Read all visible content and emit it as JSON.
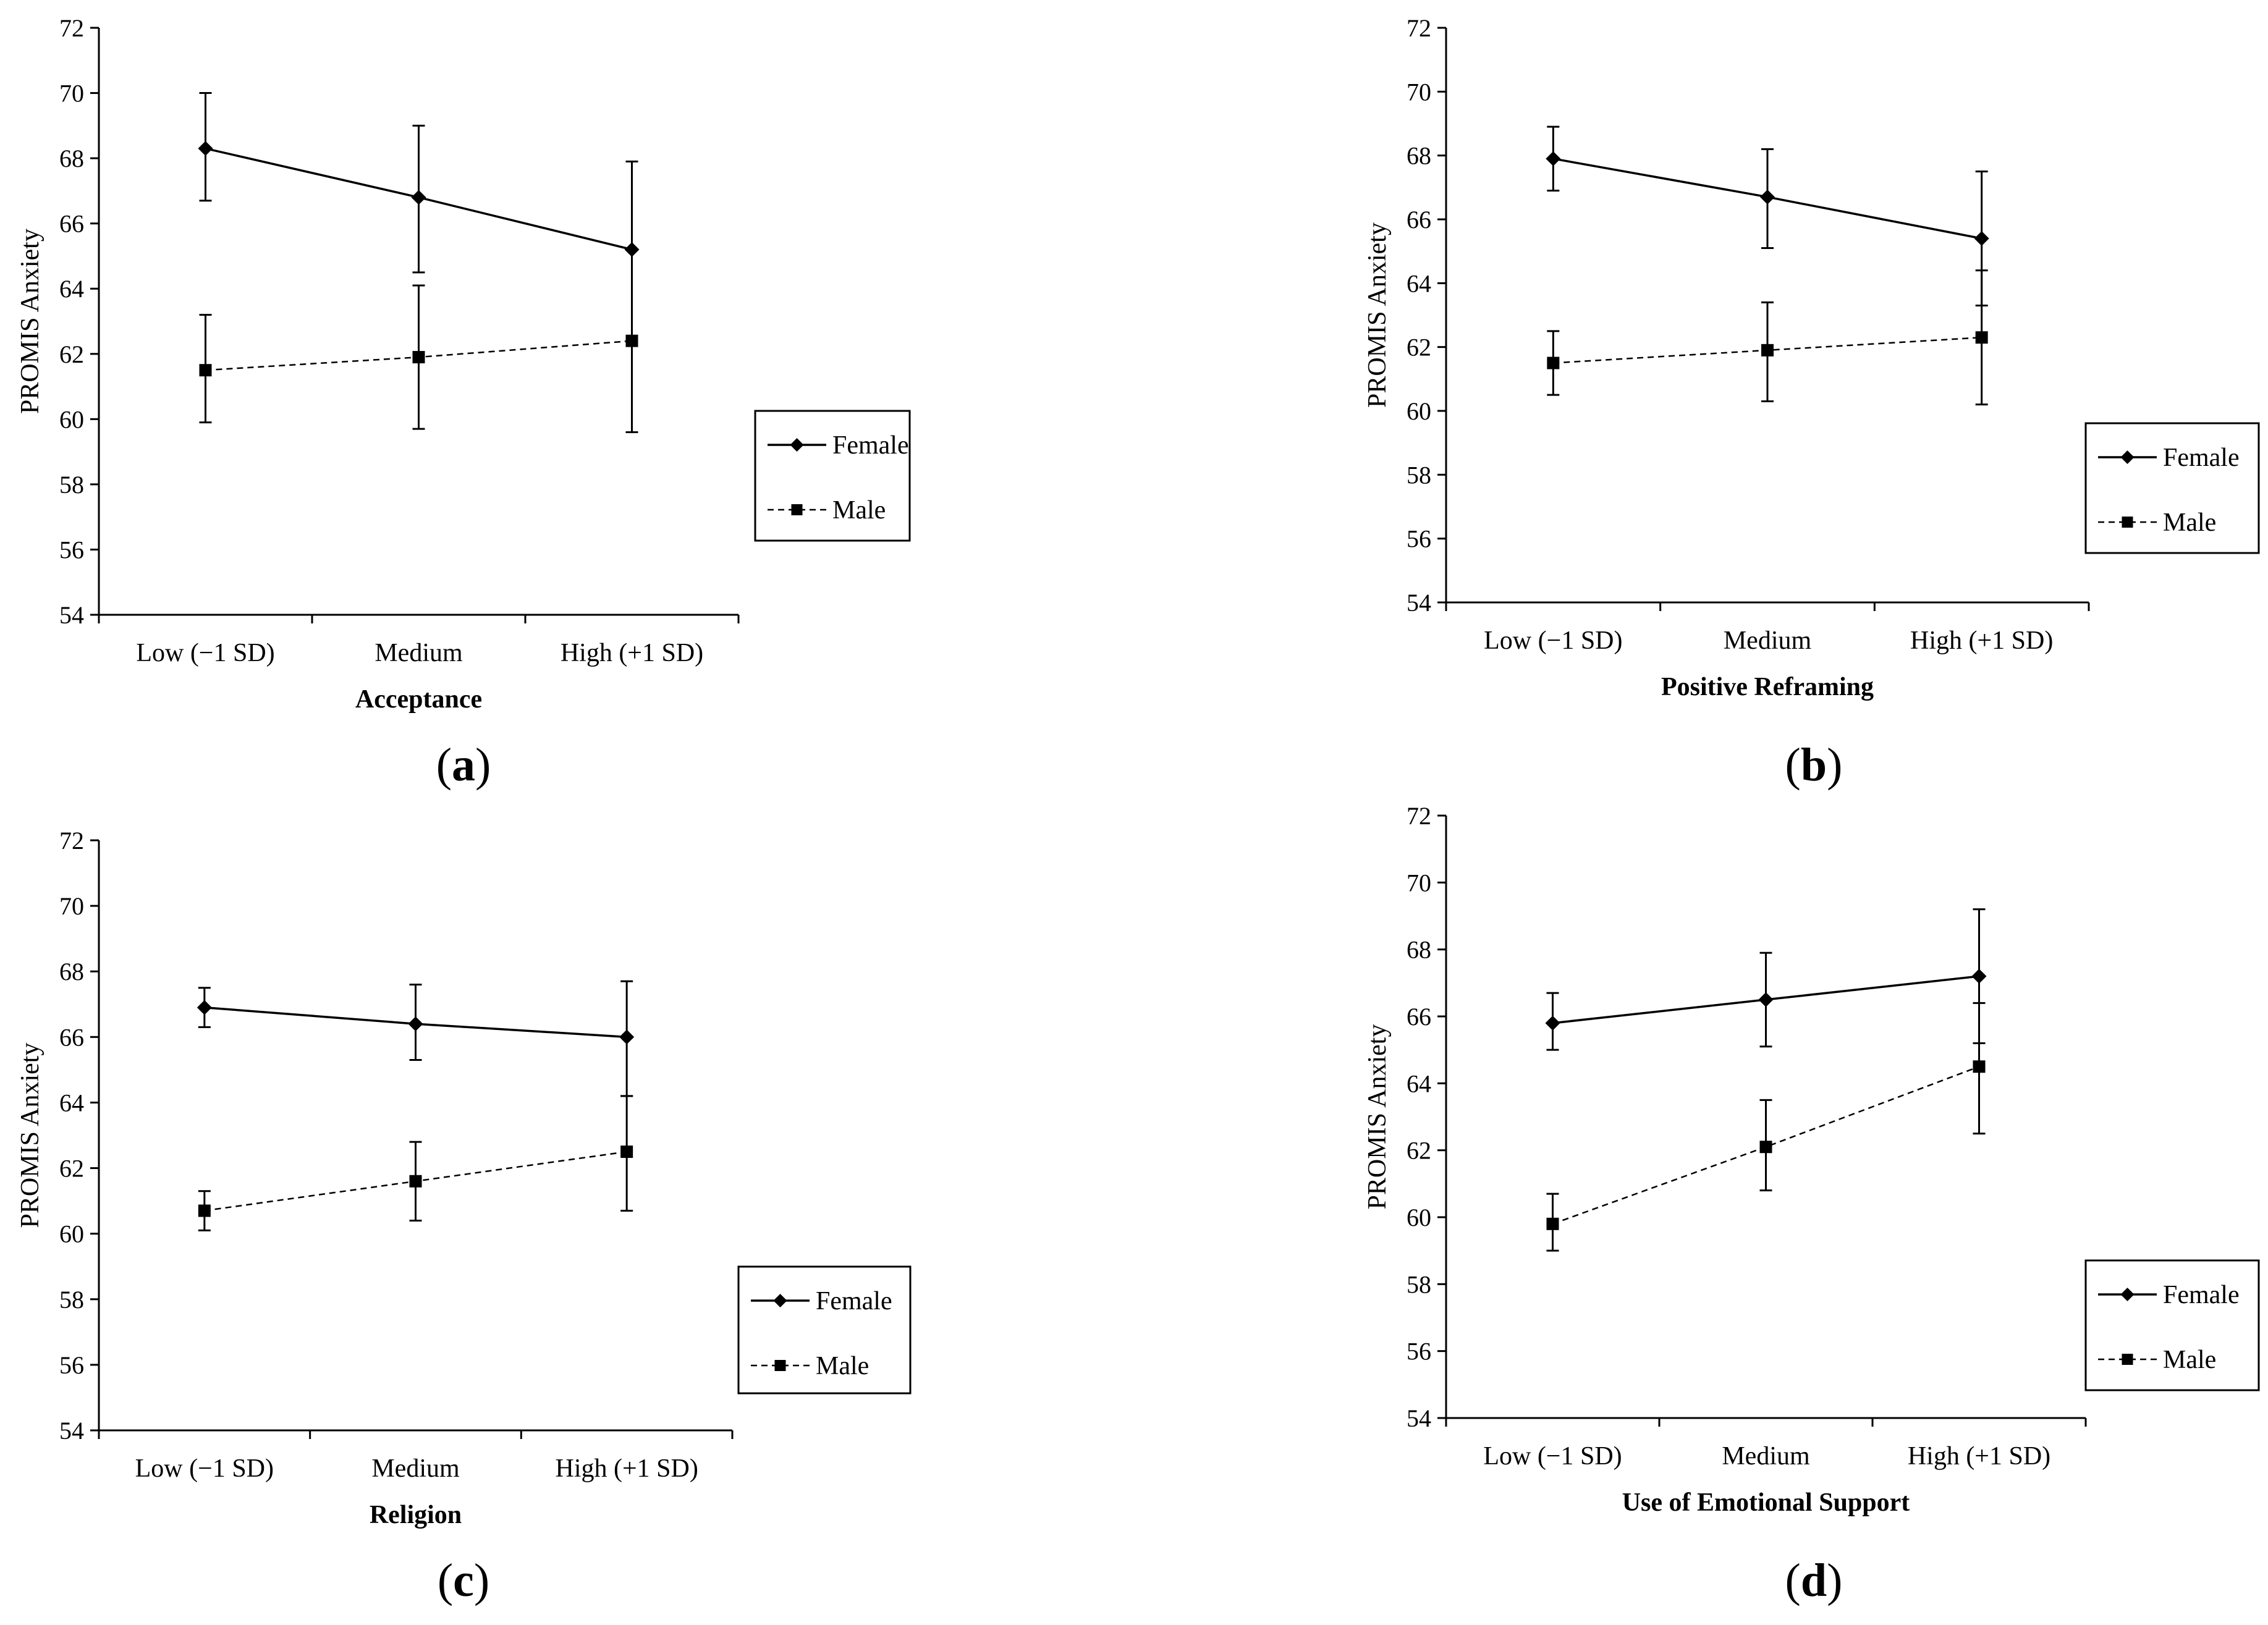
{
  "chart_data": [
    {
      "id": "a",
      "type": "line",
      "panel_label": "a",
      "title": "",
      "xlabel": "Acceptance",
      "ylabel": "PROMIS Anxiety",
      "ylim": [
        54,
        72
      ],
      "yticks": [
        54,
        56,
        58,
        60,
        62,
        64,
        66,
        68,
        70,
        72
      ],
      "categories": [
        "Low (−1 SD)",
        "Medium",
        "High (+1 SD)"
      ],
      "legend_position": "right",
      "series": [
        {
          "name": "Female",
          "style": "solid",
          "marker": "diamond",
          "values": [
            68.3,
            66.8,
            65.2
          ],
          "err_low": [
            66.7,
            64.5,
            62.4
          ],
          "err_high": [
            70.0,
            69.0,
            67.9
          ]
        },
        {
          "name": "Male",
          "style": "dashed",
          "marker": "square",
          "values": [
            61.5,
            61.9,
            62.4
          ],
          "err_low": [
            59.9,
            59.7,
            59.6
          ],
          "err_high": [
            63.2,
            64.1,
            65.2
          ]
        }
      ]
    },
    {
      "id": "b",
      "type": "line",
      "panel_label": "b",
      "title": "",
      "xlabel": "Positive Reframing",
      "ylabel": "PROMIS Anxiety",
      "ylim": [
        54,
        72
      ],
      "yticks": [
        54,
        56,
        58,
        60,
        62,
        64,
        66,
        68,
        70,
        72
      ],
      "categories": [
        "Low (−1 SD)",
        "Medium",
        "High (+1 SD)"
      ],
      "legend_position": "right",
      "series": [
        {
          "name": "Female",
          "style": "solid",
          "marker": "diamond",
          "values": [
            67.9,
            66.7,
            65.4
          ],
          "err_low": [
            66.9,
            65.1,
            63.3
          ],
          "err_high": [
            68.9,
            68.2,
            67.5
          ]
        },
        {
          "name": "Male",
          "style": "dashed",
          "marker": "square",
          "values": [
            61.5,
            61.9,
            62.3
          ],
          "err_low": [
            60.5,
            60.3,
            60.2
          ],
          "err_high": [
            62.5,
            63.4,
            64.4
          ]
        }
      ]
    },
    {
      "id": "c",
      "type": "line",
      "panel_label": "c",
      "title": "",
      "xlabel": "Religion",
      "ylabel": "PROMIS Anxiety",
      "ylim": [
        54,
        72
      ],
      "yticks": [
        54,
        56,
        58,
        60,
        62,
        64,
        66,
        68,
        70,
        72
      ],
      "categories": [
        "Low (−1 SD)",
        "Medium",
        "High (+1 SD)"
      ],
      "legend_position": "right",
      "series": [
        {
          "name": "Female",
          "style": "solid",
          "marker": "diamond",
          "values": [
            66.9,
            66.4,
            66.0
          ],
          "err_low": [
            66.3,
            65.3,
            64.2
          ],
          "err_high": [
            67.5,
            67.6,
            67.7
          ]
        },
        {
          "name": "Male",
          "style": "dashed",
          "marker": "square",
          "values": [
            60.7,
            61.6,
            62.5
          ],
          "err_low": [
            60.1,
            60.4,
            60.7
          ],
          "err_high": [
            61.3,
            62.8,
            64.2
          ]
        }
      ]
    },
    {
      "id": "d",
      "type": "line",
      "panel_label": "d",
      "title": "",
      "xlabel": "Use of Emotional Support",
      "ylabel": "PROMIS Anxiety",
      "ylim": [
        54,
        72
      ],
      "yticks": [
        54,
        56,
        58,
        60,
        62,
        64,
        66,
        68,
        70,
        72
      ],
      "categories": [
        "Low (−1 SD)",
        "Medium",
        "High (+1 SD)"
      ],
      "legend_position": "right",
      "series": [
        {
          "name": "Female",
          "style": "solid",
          "marker": "diamond",
          "values": [
            65.8,
            66.5,
            67.2
          ],
          "err_low": [
            65.0,
            65.1,
            65.2
          ],
          "err_high": [
            66.7,
            67.9,
            69.2
          ]
        },
        {
          "name": "Male",
          "style": "dashed",
          "marker": "square",
          "values": [
            59.8,
            62.1,
            64.5
          ],
          "err_low": [
            59.0,
            60.8,
            62.5
          ],
          "err_high": [
            60.7,
            63.5,
            66.4
          ]
        }
      ]
    }
  ]
}
